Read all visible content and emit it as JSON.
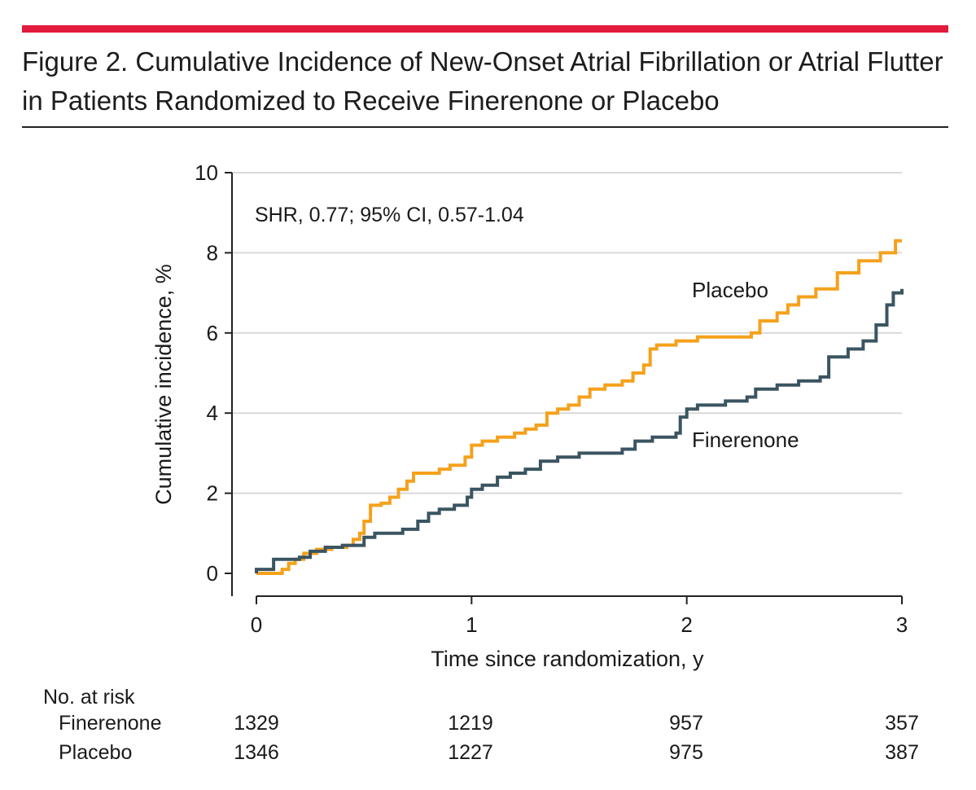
{
  "figure": {
    "title": "Figure 2. Cumulative Incidence of New-Onset Atrial Fibrillation or Atrial Flutter in Patients Randomized to Receive Finerenone or Placebo",
    "accent_color": "#e21b3c"
  },
  "chart_data": {
    "type": "line",
    "step": true,
    "xlabel": "Time since randomization, y",
    "ylabel": "Cumulative incidence, %",
    "xlim": [
      0,
      3
    ],
    "ylim": [
      0,
      10
    ],
    "x_ticks": [
      "0",
      "1",
      "2",
      "3"
    ],
    "y_ticks": [
      "0",
      "2",
      "4",
      "6",
      "8",
      "10"
    ],
    "grid": "horizontal",
    "annotation": "SHR, 0.77; 95% CI, 0.57-1.04",
    "series": [
      {
        "name": "Placebo",
        "color": "#f5a11c",
        "points": [
          [
            0,
            0
          ],
          [
            0.12,
            0
          ],
          [
            0.12,
            0.1
          ],
          [
            0.15,
            0.25
          ],
          [
            0.18,
            0.35
          ],
          [
            0.22,
            0.5
          ],
          [
            0.28,
            0.6
          ],
          [
            0.35,
            0.65
          ],
          [
            0.42,
            0.7
          ],
          [
            0.45,
            0.85
          ],
          [
            0.48,
            1.0
          ],
          [
            0.5,
            1.3
          ],
          [
            0.53,
            1.7
          ],
          [
            0.58,
            1.75
          ],
          [
            0.62,
            1.9
          ],
          [
            0.66,
            2.1
          ],
          [
            0.7,
            2.3
          ],
          [
            0.73,
            2.5
          ],
          [
            0.85,
            2.6
          ],
          [
            0.9,
            2.7
          ],
          [
            0.97,
            2.9
          ],
          [
            1.0,
            3.2
          ],
          [
            1.05,
            3.3
          ],
          [
            1.12,
            3.4
          ],
          [
            1.2,
            3.5
          ],
          [
            1.25,
            3.6
          ],
          [
            1.3,
            3.7
          ],
          [
            1.35,
            4.0
          ],
          [
            1.4,
            4.1
          ],
          [
            1.45,
            4.2
          ],
          [
            1.5,
            4.4
          ],
          [
            1.55,
            4.6
          ],
          [
            1.62,
            4.7
          ],
          [
            1.7,
            4.8
          ],
          [
            1.75,
            5.0
          ],
          [
            1.8,
            5.2
          ],
          [
            1.83,
            5.6
          ],
          [
            1.86,
            5.7
          ],
          [
            1.95,
            5.8
          ],
          [
            2.05,
            5.9
          ],
          [
            2.3,
            6.0
          ],
          [
            2.34,
            6.3
          ],
          [
            2.42,
            6.5
          ],
          [
            2.47,
            6.7
          ],
          [
            2.52,
            6.9
          ],
          [
            2.6,
            7.1
          ],
          [
            2.7,
            7.5
          ],
          [
            2.8,
            7.8
          ],
          [
            2.9,
            8.0
          ],
          [
            2.97,
            8.3
          ],
          [
            3.0,
            8.3
          ]
        ]
      },
      {
        "name": "Finerenone",
        "color": "#3a5561",
        "points": [
          [
            0,
            0
          ],
          [
            0,
            0.1
          ],
          [
            0.07,
            0.1
          ],
          [
            0.08,
            0.35
          ],
          [
            0.2,
            0.4
          ],
          [
            0.25,
            0.55
          ],
          [
            0.32,
            0.65
          ],
          [
            0.4,
            0.7
          ],
          [
            0.5,
            0.9
          ],
          [
            0.55,
            1.0
          ],
          [
            0.63,
            1.0
          ],
          [
            0.68,
            1.1
          ],
          [
            0.75,
            1.3
          ],
          [
            0.8,
            1.5
          ],
          [
            0.85,
            1.6
          ],
          [
            0.92,
            1.7
          ],
          [
            0.98,
            1.9
          ],
          [
            1.0,
            2.1
          ],
          [
            1.05,
            2.2
          ],
          [
            1.12,
            2.4
          ],
          [
            1.18,
            2.5
          ],
          [
            1.25,
            2.6
          ],
          [
            1.32,
            2.8
          ],
          [
            1.4,
            2.9
          ],
          [
            1.5,
            3.0
          ],
          [
            1.7,
            3.1
          ],
          [
            1.76,
            3.3
          ],
          [
            1.84,
            3.4
          ],
          [
            1.95,
            3.5
          ],
          [
            1.97,
            3.9
          ],
          [
            2.0,
            4.1
          ],
          [
            2.05,
            4.2
          ],
          [
            2.18,
            4.3
          ],
          [
            2.28,
            4.4
          ],
          [
            2.32,
            4.6
          ],
          [
            2.42,
            4.7
          ],
          [
            2.52,
            4.8
          ],
          [
            2.62,
            4.9
          ],
          [
            2.66,
            5.4
          ],
          [
            2.75,
            5.6
          ],
          [
            2.82,
            5.8
          ],
          [
            2.88,
            6.2
          ],
          [
            2.93,
            6.7
          ],
          [
            2.96,
            7.0
          ],
          [
            3.0,
            7.1
          ]
        ]
      }
    ],
    "series_labels": [
      "Placebo",
      "Finerenone"
    ]
  },
  "risk_table": {
    "heading": "No. at risk",
    "rows": [
      {
        "label": "Finerenone",
        "values": [
          "1329",
          "1219",
          "957",
          "357"
        ]
      },
      {
        "label": "Placebo",
        "values": [
          "1346",
          "1227",
          "975",
          "387"
        ]
      }
    ]
  }
}
